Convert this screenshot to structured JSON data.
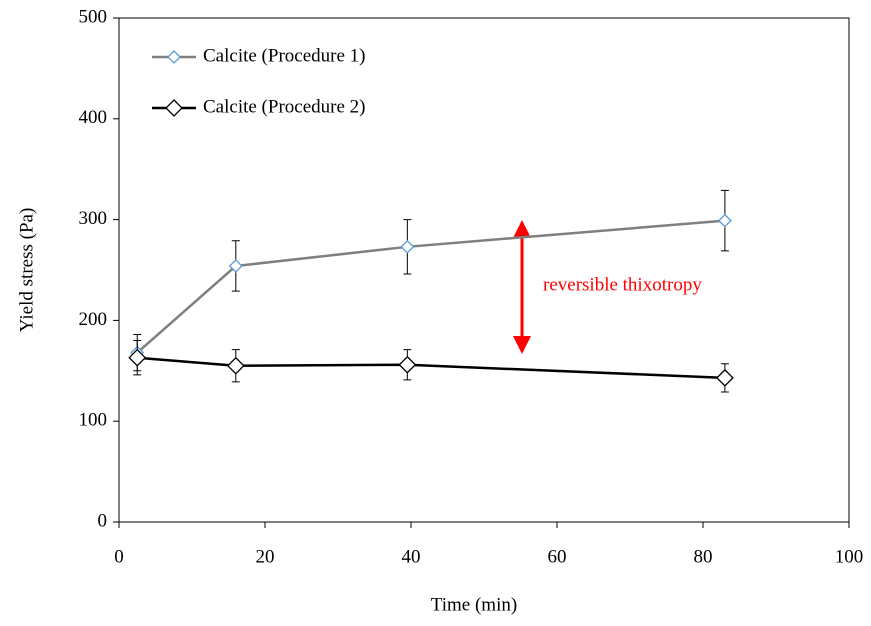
{
  "chart_data": {
    "type": "line",
    "x_label": "Time (min)",
    "y_label": "Yield stress (Pa)",
    "x": [
      2.5,
      16,
      39.5,
      83
    ],
    "series": [
      {
        "name": "Calcite (Procedure 1)",
        "color": "#7f7f7f",
        "marker_color": "#5b9bd5",
        "values": [
          168,
          254,
          273,
          299
        ],
        "errors": [
          18,
          25,
          27,
          30
        ]
      },
      {
        "name": "Calcite (Procedure 2)",
        "color": "#000000",
        "marker_color": "#000000",
        "values": [
          163,
          155,
          156,
          143
        ],
        "errors": [
          17,
          16,
          15,
          14
        ]
      }
    ],
    "annotation": "reversible thixotropy",
    "annotation_color": "#ff0000",
    "xlim": [
      0,
      100
    ],
    "xticks": [
      0,
      20,
      40,
      60,
      80,
      100
    ],
    "ylim": [
      0,
      500
    ],
    "yticks": [
      0,
      100,
      200,
      300,
      400,
      500
    ],
    "grid": false,
    "legend": "upper left"
  }
}
